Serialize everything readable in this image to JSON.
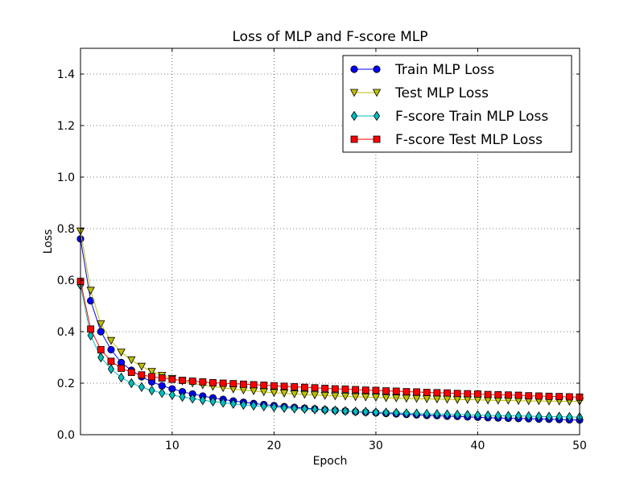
{
  "chart_data": {
    "type": "line",
    "title": "Loss of MLP and F-score MLP",
    "xlabel": "Epoch",
    "ylabel": "Loss",
    "xlim": [
      1,
      50
    ],
    "ylim": [
      0.0,
      1.5
    ],
    "xticks": [
      10,
      20,
      30,
      40,
      50
    ],
    "yticks": [
      0.0,
      0.2,
      0.4,
      0.6,
      0.8,
      1.0,
      1.2,
      1.4
    ],
    "ytick_labels": [
      "0.0",
      "0.2",
      "0.4",
      "0.6",
      "0.8",
      "1.0",
      "1.2",
      "1.4"
    ],
    "grid": true,
    "legend_position": "top-right",
    "x": [
      1,
      2,
      3,
      4,
      5,
      6,
      7,
      8,
      9,
      10,
      11,
      12,
      13,
      14,
      15,
      16,
      17,
      18,
      19,
      20,
      21,
      22,
      23,
      24,
      25,
      26,
      27,
      28,
      29,
      30,
      31,
      32,
      33,
      34,
      35,
      36,
      37,
      38,
      39,
      40,
      41,
      42,
      43,
      44,
      45,
      46,
      47,
      48,
      49,
      50
    ],
    "series": [
      {
        "name": "Train MLP Loss",
        "color": "#0000ff",
        "marker": "circle",
        "values": [
          0.76,
          0.52,
          0.4,
          0.33,
          0.28,
          0.25,
          0.225,
          0.205,
          0.19,
          0.178,
          0.167,
          0.158,
          0.15,
          0.143,
          0.137,
          0.131,
          0.126,
          0.121,
          0.117,
          0.113,
          0.109,
          0.106,
          0.103,
          0.1,
          0.097,
          0.094,
          0.092,
          0.089,
          0.087,
          0.085,
          0.083,
          0.081,
          0.079,
          0.077,
          0.075,
          0.074,
          0.072,
          0.071,
          0.069,
          0.068,
          0.066,
          0.065,
          0.064,
          0.063,
          0.062,
          0.061,
          0.06,
          0.059,
          0.058,
          0.057
        ]
      },
      {
        "name": "Test MLP Loss",
        "color": "#bfbf00",
        "marker": "triangle-down",
        "values": [
          0.79,
          0.56,
          0.43,
          0.365,
          0.32,
          0.29,
          0.265,
          0.245,
          0.23,
          0.218,
          0.208,
          0.2,
          0.193,
          0.187,
          0.182,
          0.177,
          0.173,
          0.17,
          0.166,
          0.163,
          0.161,
          0.158,
          0.156,
          0.154,
          0.152,
          0.15,
          0.149,
          0.147,
          0.146,
          0.145,
          0.143,
          0.142,
          0.141,
          0.14,
          0.139,
          0.138,
          0.137,
          0.136,
          0.136,
          0.135,
          0.134,
          0.133,
          0.133,
          0.132,
          0.131,
          0.131,
          0.13,
          0.13,
          0.129,
          0.129
        ]
      },
      {
        "name": "F-score Train MLP Loss",
        "color": "#00bfbf",
        "marker": "diamond",
        "values": [
          0.58,
          0.385,
          0.3,
          0.255,
          0.222,
          0.2,
          0.185,
          0.172,
          0.162,
          0.154,
          0.147,
          0.14,
          0.134,
          0.129,
          0.124,
          0.12,
          0.116,
          0.113,
          0.11,
          0.107,
          0.104,
          0.102,
          0.1,
          0.098,
          0.096,
          0.094,
          0.092,
          0.09,
          0.089,
          0.087,
          0.086,
          0.085,
          0.083,
          0.082,
          0.081,
          0.08,
          0.079,
          0.078,
          0.077,
          0.076,
          0.075,
          0.074,
          0.073,
          0.073,
          0.072,
          0.071,
          0.07,
          0.07,
          0.069,
          0.068
        ]
      },
      {
        "name": "F-score Test MLP Loss",
        "color": "#ff0000",
        "marker": "square",
        "values": [
          0.595,
          0.41,
          0.33,
          0.285,
          0.258,
          0.242,
          0.232,
          0.225,
          0.22,
          0.215,
          0.211,
          0.208,
          0.205,
          0.202,
          0.2,
          0.198,
          0.196,
          0.194,
          0.192,
          0.19,
          0.188,
          0.186,
          0.184,
          0.182,
          0.18,
          0.178,
          0.177,
          0.175,
          0.173,
          0.172,
          0.17,
          0.169,
          0.167,
          0.166,
          0.164,
          0.163,
          0.162,
          0.16,
          0.159,
          0.158,
          0.156,
          0.155,
          0.154,
          0.153,
          0.151,
          0.15,
          0.149,
          0.148,
          0.147,
          0.146
        ]
      }
    ]
  }
}
